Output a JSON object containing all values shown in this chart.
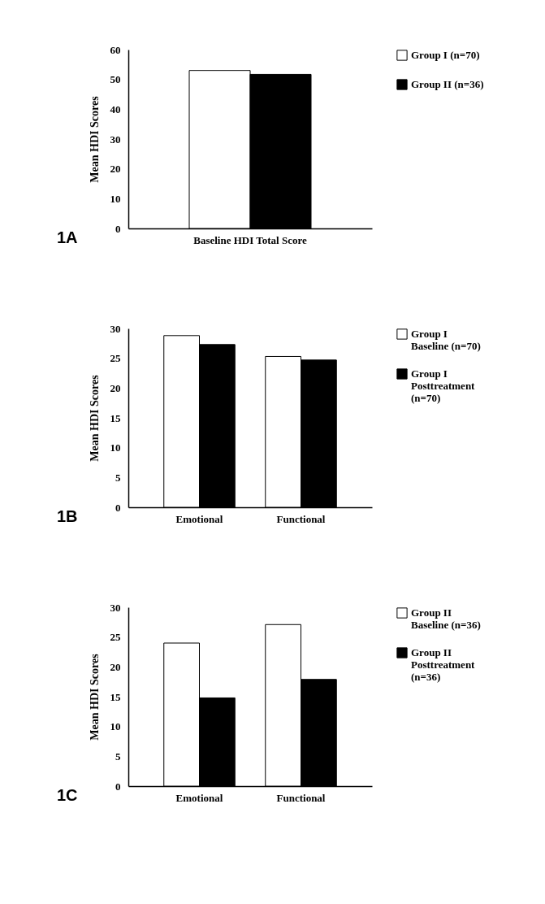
{
  "chart_data": [
    {
      "type": "bar",
      "categories": [
        "Baseline HDI Total Score"
      ],
      "ylabel": "Mean HDI Scores",
      "ylim": [
        0,
        60
      ],
      "yticks": [
        0,
        10,
        20,
        30,
        40,
        50,
        60
      ],
      "legend": "right",
      "grid": false,
      "annotations": [
        "1A"
      ],
      "series": [
        {
          "name": "Group I (n=70)",
          "color": "#ffffff",
          "values": [
            53
          ]
        },
        {
          "name": "Group II (n=36)",
          "color": "#000000",
          "values": [
            51.7
          ]
        }
      ]
    },
    {
      "type": "bar",
      "categories": [
        "Emotional",
        "Functional"
      ],
      "ylabel": "Mean HDI Scores",
      "ylim": [
        0,
        30
      ],
      "yticks": [
        0,
        5,
        10,
        15,
        20,
        25,
        30
      ],
      "legend": "right",
      "grid": false,
      "annotations": [
        "1B"
      ],
      "series": [
        {
          "name": "Group I Baseline (n=70)",
          "color": "#ffffff",
          "values": [
            28.8,
            25.3
          ]
        },
        {
          "name": "Group I Posttreatment (n=70)",
          "color": "#000000",
          "values": [
            27.3,
            24.7
          ]
        }
      ]
    },
    {
      "type": "bar",
      "categories": [
        "Emotional",
        "Functional"
      ],
      "ylabel": "Mean HDI Scores",
      "ylim": [
        0,
        30
      ],
      "yticks": [
        0,
        5,
        10,
        15,
        20,
        25,
        30
      ],
      "legend": "right",
      "grid": false,
      "annotations": [
        "1C"
      ],
      "series": [
        {
          "name": "Group II Baseline (n=36)",
          "color": "#ffffff",
          "values": [
            24.0,
            27.1
          ]
        },
        {
          "name": "Group II Posttreatment (n=36)",
          "color": "#000000",
          "values": [
            14.8,
            17.9
          ]
        }
      ]
    }
  ]
}
